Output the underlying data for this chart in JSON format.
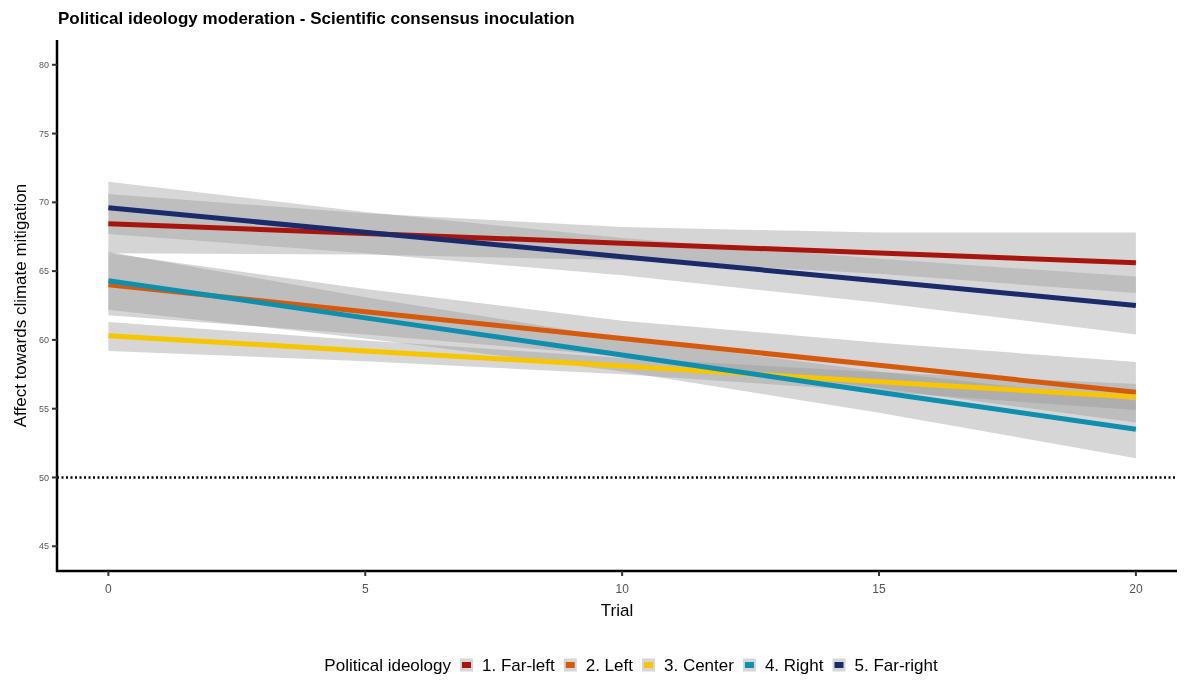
{
  "chart_data": {
    "type": "line",
    "title": "Political ideology moderation - Scientific consensus inoculation",
    "xlabel": "Trial",
    "ylabel": "Affect towards climate mitigation",
    "legend_title": "Political ideology",
    "legend": "bottom",
    "x": [
      0,
      5,
      10,
      15,
      20
    ],
    "xlim": [
      -1,
      20.8
    ],
    "xticks": [
      0,
      5,
      10,
      15,
      20
    ],
    "ylim": [
      43.2,
      81.8
    ],
    "yticks": [
      45,
      50,
      55,
      60,
      65,
      70,
      75,
      80
    ],
    "ref_lines": [
      {
        "axis": "y",
        "value": 50,
        "line_style": "dotted",
        "color": "#000000"
      }
    ],
    "series": [
      {
        "name": "1. Far-left",
        "color": "#a8150c",
        "values": [
          68.45,
          67.74,
          67.03,
          66.31,
          65.6
        ],
        "lower": [
          66.3,
          66.2,
          65.8,
          64.8,
          63.4
        ],
        "upper": [
          70.6,
          69.2,
          68.2,
          67.8,
          67.8
        ]
      },
      {
        "name": "2. Left",
        "color": "#d65a0c",
        "values": [
          64.0,
          62.05,
          60.1,
          58.15,
          56.2
        ],
        "lower": [
          61.8,
          60.4,
          58.8,
          56.5,
          54.0
        ],
        "upper": [
          66.3,
          63.7,
          61.4,
          59.8,
          58.4
        ]
      },
      {
        "name": "3. Center",
        "color": "#f7c600",
        "values": [
          60.3,
          59.2,
          58.1,
          56.95,
          55.85
        ],
        "lower": [
          59.2,
          58.45,
          57.5,
          56.25,
          54.9
        ],
        "upper": [
          61.3,
          59.95,
          58.7,
          57.65,
          56.8
        ]
      },
      {
        "name": "4. Right",
        "color": "#0e8fae",
        "values": [
          64.3,
          61.6,
          58.9,
          56.2,
          53.5
        ],
        "lower": [
          62.2,
          60.1,
          57.7,
          54.7,
          51.4
        ],
        "upper": [
          66.4,
          63.1,
          60.1,
          57.7,
          55.6
        ]
      },
      {
        "name": "5. Far-right",
        "color": "#1b2a6b",
        "values": [
          69.6,
          67.83,
          66.05,
          64.28,
          62.5
        ],
        "lower": [
          67.7,
          66.3,
          64.7,
          62.7,
          60.4
        ],
        "upper": [
          71.5,
          69.3,
          67.4,
          65.9,
          64.6
        ]
      }
    ]
  }
}
